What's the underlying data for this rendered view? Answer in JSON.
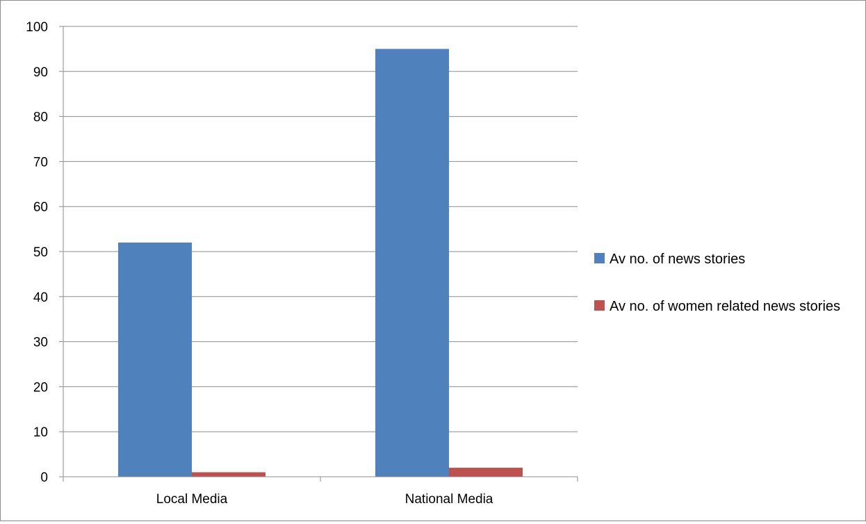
{
  "chart_data": {
    "type": "bar",
    "categories": [
      "Local Media",
      "National Media"
    ],
    "series": [
      {
        "name": "Av no. of news stories",
        "values": [
          52,
          95
        ],
        "color": "#4f81bd"
      },
      {
        "name": "Av no. of women related news stories",
        "values": [
          1,
          2
        ],
        "color": "#c0504d"
      }
    ],
    "ylim": [
      0,
      100
    ],
    "yticks": [
      0,
      10,
      20,
      30,
      40,
      50,
      60,
      70,
      80,
      90,
      100
    ],
    "grid": true,
    "legend_position": "right"
  }
}
